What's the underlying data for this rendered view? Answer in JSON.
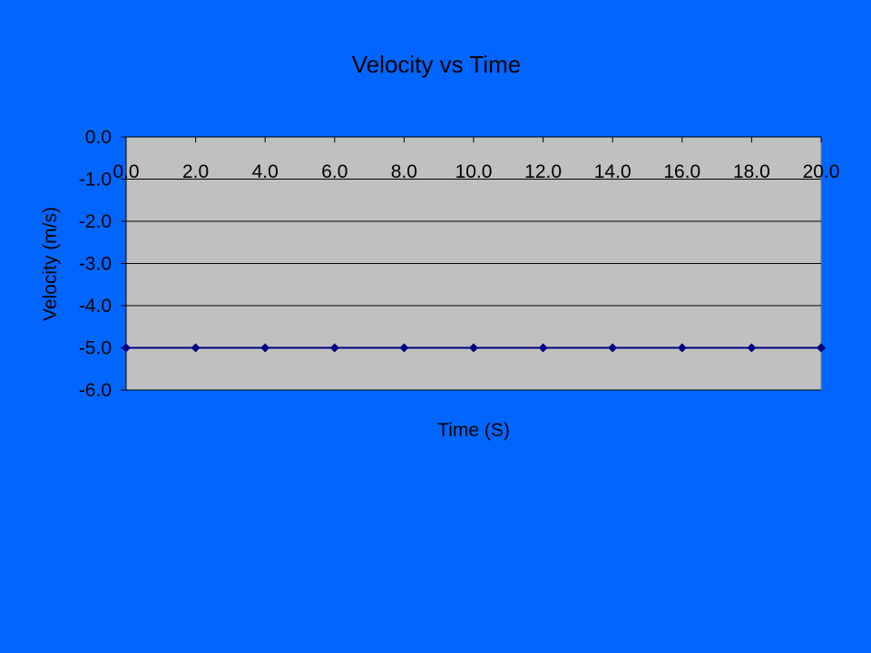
{
  "chart_data": {
    "type": "line",
    "title": "Velocity vs Time",
    "xlabel": "Time (S)",
    "ylabel": "Velocity (m/s)",
    "x": [
      0,
      2,
      4,
      6,
      8,
      10,
      12,
      14,
      16,
      18,
      20
    ],
    "x_tick_labels": [
      "0.0",
      "2.0",
      "4.0",
      "6.0",
      "8.0",
      "10.0",
      "12.0",
      "14.0",
      "16.0",
      "18.0",
      "20.0"
    ],
    "y_ticks": [
      0,
      -1,
      -2,
      -3,
      -4,
      -5,
      -6
    ],
    "y_tick_labels": [
      "0.0",
      "-1.0",
      "-2.0",
      "-3.0",
      "-4.0",
      "-5.0",
      "-6.0"
    ],
    "series": [
      {
        "values": [
          -5,
          -5,
          -5,
          -5,
          -5,
          -5,
          -5,
          -5,
          -5,
          -5,
          -5
        ]
      }
    ],
    "xlim": [
      0,
      20
    ],
    "ylim": [
      -6,
      0
    ],
    "grid": true,
    "legend": "none",
    "x_axis_position": "top",
    "colors": {
      "background": "#0066ff",
      "plot_area": "#c0c0c0",
      "line": "#000080",
      "marker": "#000080",
      "grid": "#000000"
    }
  }
}
